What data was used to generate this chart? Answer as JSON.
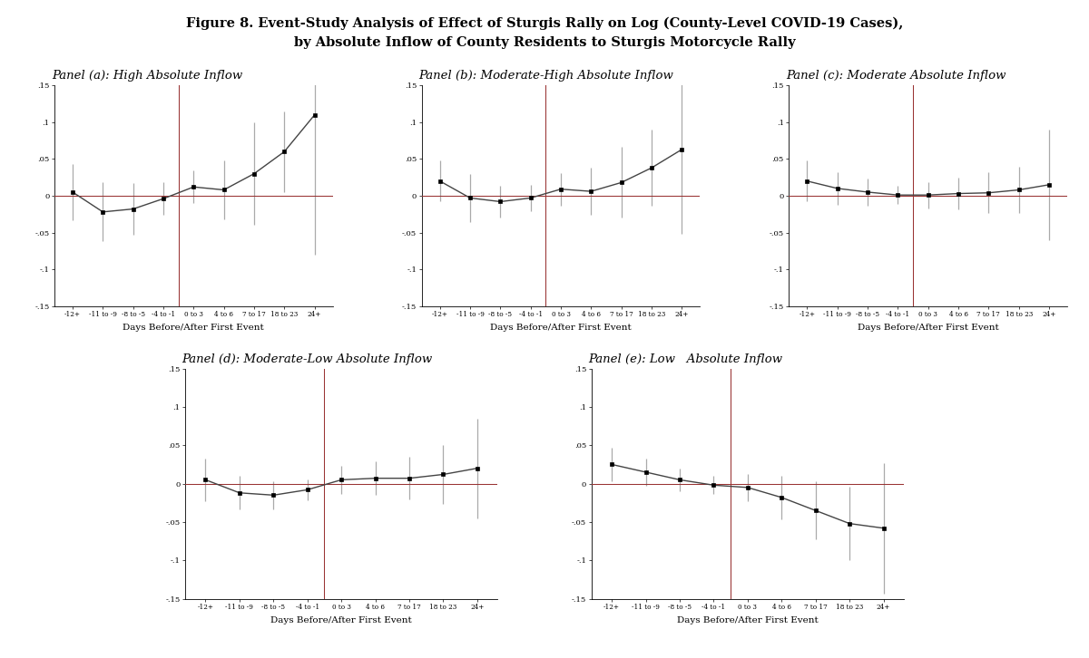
{
  "title_line1": "Figure 8. Event-Study Analysis of Effect of Sturgis Rally on Log (County-Level COVID-19 Cases),",
  "title_line2": "by Absolute Inflow of County Residents to Sturgis Motorcycle Rally",
  "xlabel": "Days Before/After First Event",
  "x_labels": [
    "-12+",
    "-11 to -9",
    "-8 to -5",
    "-4 to -1",
    "0 to 3",
    "4 to 6",
    "7 to 17",
    "18 to 23",
    "24+"
  ],
  "ylim": [
    -0.15,
    0.15
  ],
  "yticks": [
    -0.15,
    -0.1,
    -0.05,
    0,
    0.05,
    0.1,
    0.15
  ],
  "ytick_labels": [
    "-.15",
    "-.1",
    "-.05",
    "0",
    ".05",
    ".1",
    ".15"
  ],
  "vline_pos": 3.5,
  "panels": [
    {
      "title": "Panel (a): High Absolute Inflow",
      "y": [
        0.005,
        -0.022,
        -0.018,
        -0.004,
        0.012,
        0.008,
        0.03,
        0.06,
        0.11
      ],
      "yerr_lo": [
        0.038,
        0.04,
        0.035,
        0.022,
        0.022,
        0.04,
        0.07,
        0.055,
        0.19
      ],
      "yerr_hi": [
        0.038,
        0.04,
        0.035,
        0.022,
        0.022,
        0.04,
        0.07,
        0.055,
        0.19
      ]
    },
    {
      "title": "Panel (b): Moderate-High Absolute Inflow",
      "y": [
        0.02,
        -0.003,
        -0.008,
        -0.003,
        0.009,
        0.006,
        0.018,
        0.038,
        0.063
      ],
      "yerr_lo": [
        0.028,
        0.033,
        0.022,
        0.018,
        0.022,
        0.032,
        0.048,
        0.052,
        0.115
      ],
      "yerr_hi": [
        0.028,
        0.033,
        0.022,
        0.018,
        0.022,
        0.032,
        0.048,
        0.052,
        0.115
      ]
    },
    {
      "title": "Panel (c): Moderate Absolute Inflow",
      "y": [
        0.02,
        0.01,
        0.005,
        0.001,
        0.001,
        0.003,
        0.004,
        0.008,
        0.015
      ],
      "yerr_lo": [
        0.028,
        0.022,
        0.018,
        0.012,
        0.018,
        0.022,
        0.028,
        0.032,
        0.075
      ],
      "yerr_hi": [
        0.028,
        0.022,
        0.018,
        0.012,
        0.018,
        0.022,
        0.028,
        0.032,
        0.075
      ]
    },
    {
      "title": "Panel (d): Moderate-Low Absolute Inflow",
      "y": [
        0.005,
        -0.012,
        -0.015,
        -0.008,
        0.005,
        0.007,
        0.007,
        0.012,
        0.02
      ],
      "yerr_lo": [
        0.028,
        0.022,
        0.018,
        0.014,
        0.018,
        0.022,
        0.028,
        0.038,
        0.065
      ],
      "yerr_hi": [
        0.028,
        0.022,
        0.018,
        0.014,
        0.018,
        0.022,
        0.028,
        0.038,
        0.065
      ]
    },
    {
      "title": "Panel (e): Low   Absolute Inflow",
      "y": [
        0.025,
        0.015,
        0.005,
        -0.002,
        -0.005,
        -0.018,
        -0.035,
        -0.052,
        -0.058
      ],
      "yerr_lo": [
        0.022,
        0.018,
        0.015,
        0.012,
        0.018,
        0.028,
        0.038,
        0.048,
        0.085
      ],
      "yerr_hi": [
        0.022,
        0.018,
        0.015,
        0.012,
        0.018,
        0.028,
        0.038,
        0.048,
        0.085
      ]
    }
  ],
  "line_color": "#444444",
  "marker": "s",
  "marker_size": 3.5,
  "errorbar_color": "#aaaaaa",
  "hline_color": "#993333",
  "vline_color": "#993333",
  "bg_color": "#ffffff"
}
